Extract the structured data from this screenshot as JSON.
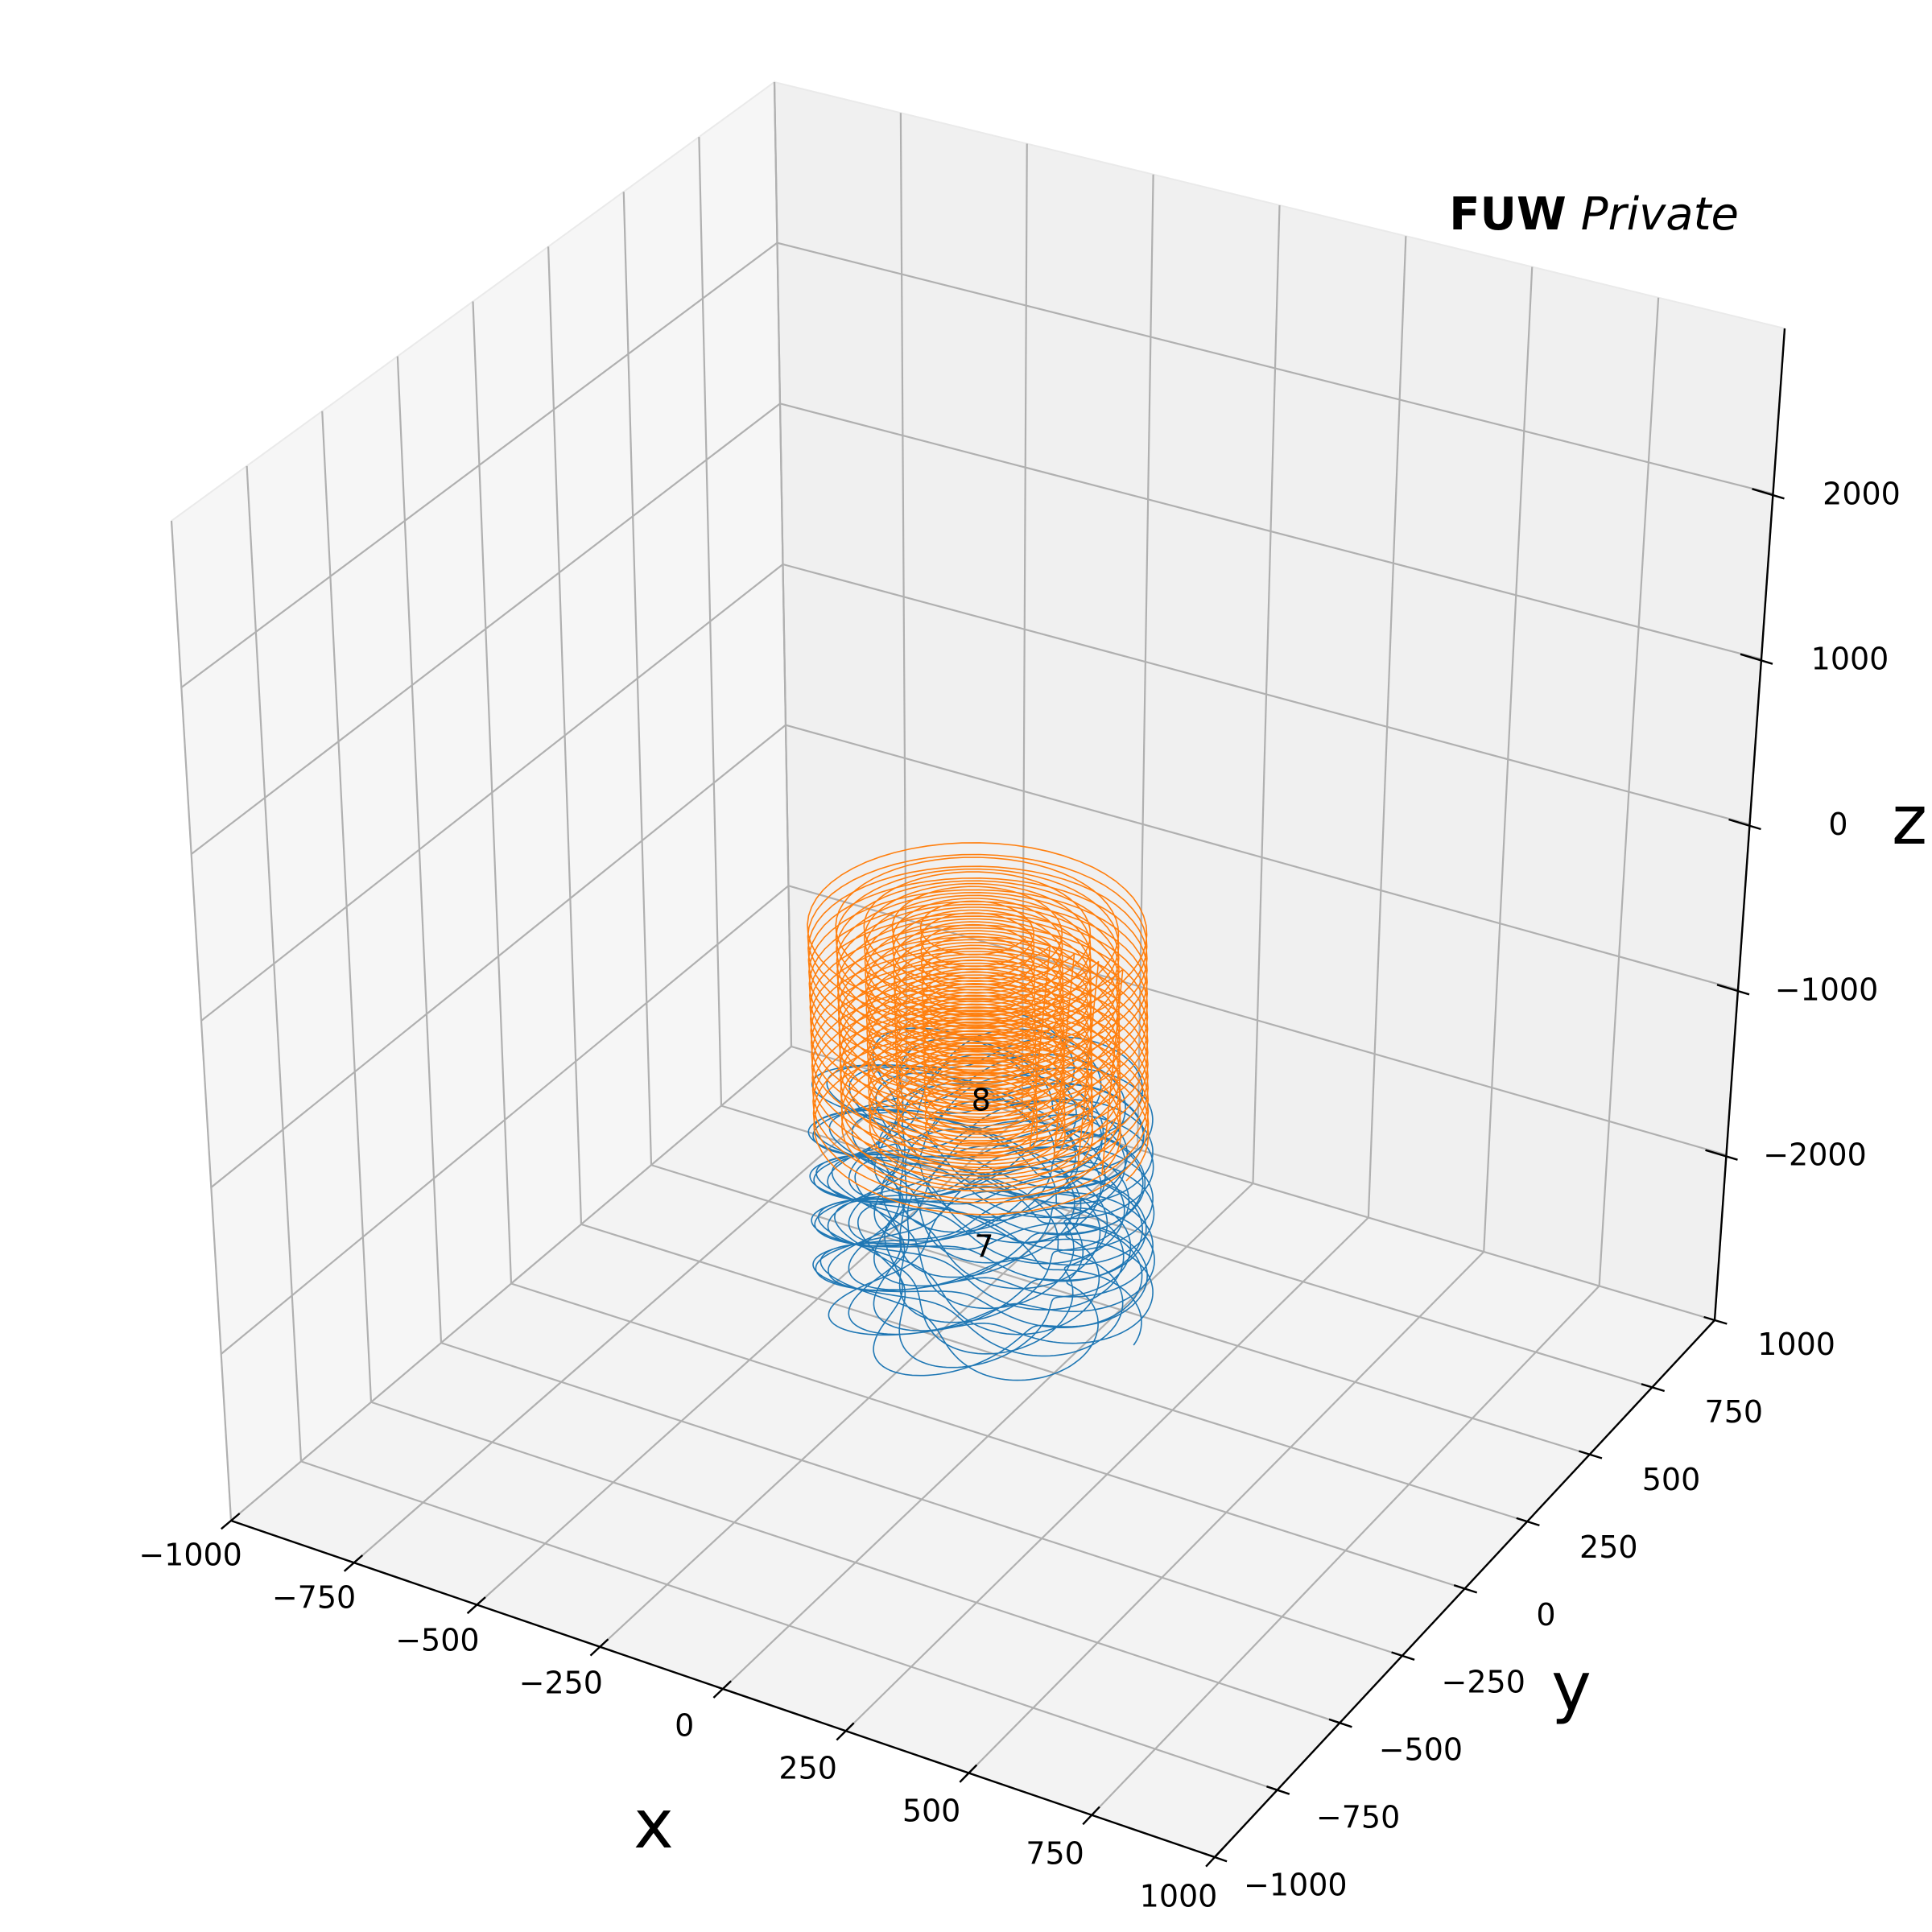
{
  "watermark": {
    "bold": "FUW",
    "italic": "Private"
  },
  "colors": {
    "series_blue": "#1f77b4",
    "series_orange": "#ff7f0e",
    "grid": "#b0b0b0",
    "pane_left": "#f6f6f6",
    "pane_back": "#f0f0f0",
    "pane_floor": "#f3f3f3",
    "axis": "#000000"
  },
  "chart_data": {
    "type": "line3d",
    "title": "",
    "xlabel": "x",
    "ylabel": "y",
    "zlabel": "z",
    "xlim": [
      -1000,
      1000
    ],
    "ylim": [
      -1000,
      1000
    ],
    "zlim": [
      -3000,
      3000
    ],
    "x_ticks": [
      -1000,
      -750,
      -500,
      -250,
      0,
      250,
      500,
      750,
      1000
    ],
    "y_ticks": [
      -1000,
      -750,
      -500,
      -250,
      0,
      250,
      500,
      750,
      1000
    ],
    "z_ticks": [
      -2000,
      -1000,
      0,
      1000,
      2000
    ],
    "x_tick_labels": [
      "−1000",
      "−750",
      "−500",
      "−250",
      "0",
      "250",
      "500",
      "750",
      "1000"
    ],
    "y_tick_labels": [
      "−1000",
      "−750",
      "−500",
      "−250",
      "0",
      "250",
      "500",
      "750",
      "1000"
    ],
    "z_tick_labels": [
      "−2000",
      "−1000",
      "0",
      "1000",
      "2000"
    ],
    "grid": true,
    "series": [
      {
        "color": "#1f77b4",
        "label": "7",
        "label_position": [
          0,
          0,
          -1900
        ],
        "shape": "toroidal coil (winding around a tube)",
        "center_x": 0,
        "center_y": 0,
        "z_range": [
          -2150,
          -950
        ],
        "major_radius": 230,
        "minor_radius": 80,
        "turns": 90
      },
      {
        "color": "#ff7f0e",
        "label": "8",
        "label_position": [
          0,
          0,
          -1000
        ],
        "shape": "solenoid (concentric stacked loops)",
        "center_x": 0,
        "center_y": 0,
        "z_range": [
          -1150,
          150
        ],
        "radii": [
          300,
          250,
          200,
          150,
          100
        ],
        "loops_per_radius": 18
      }
    ]
  }
}
